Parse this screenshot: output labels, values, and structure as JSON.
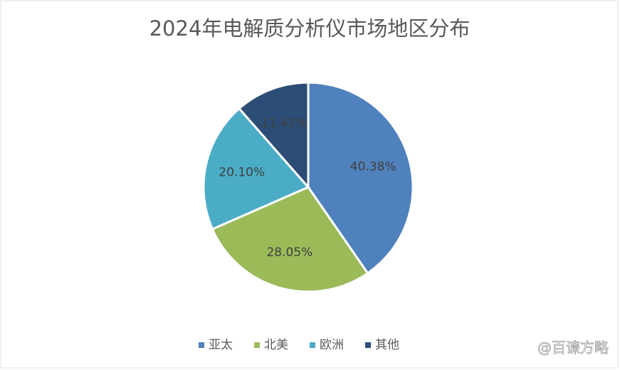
{
  "chart_data": {
    "type": "pie",
    "title": "2024年电解质分析仪市场地区分布",
    "categories": [
      "亚太",
      "北美",
      "欧洲",
      "其他"
    ],
    "values": [
      40.38,
      28.05,
      20.1,
      11.47
    ],
    "value_labels": [
      "40.38%",
      "28.05%",
      "20.10%",
      "11.47%"
    ],
    "colors": [
      "#4f81bd",
      "#9bbb59",
      "#4bacc6",
      "#2c4d75"
    ],
    "legend": "bottom"
  },
  "watermark": "@百谏方略"
}
